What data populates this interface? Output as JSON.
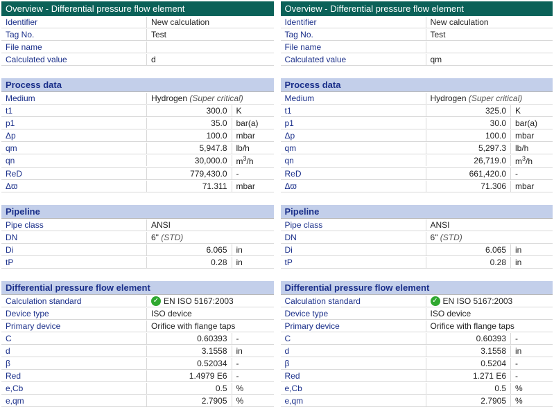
{
  "overview_title": "Overview - Differential pressure flow element",
  "sections": {
    "process_data": "Process data",
    "pipeline": "Pipeline",
    "dp_element": "Differential pressure flow element"
  },
  "labels": {
    "identifier": "Identifier",
    "tag_no": "Tag No.",
    "file_name": "File name",
    "calculated_value": "Calculated value",
    "medium": "Medium",
    "t1": "t1",
    "p1": "p1",
    "dp": "Δp",
    "qm": "qm",
    "qn": "qn",
    "reD": "ReD",
    "dw": "Δϖ",
    "pipe_class": "Pipe class",
    "dn": "DN",
    "di": "Di",
    "tp": "tP",
    "calc_std": "Calculation standard",
    "device_type": "Device type",
    "primary_device": "Primary device",
    "c": "C",
    "d": "d",
    "beta": "β",
    "red": "Red",
    "ecb": "e,Cb",
    "eqm": "e,qm"
  },
  "left": {
    "identifier": "New calculation",
    "tag_no": "Test",
    "file_name": "",
    "calculated_value": "d",
    "medium_main": "Hydrogen",
    "medium_note": "(Super critical)",
    "t1": "300.0",
    "t1_unit": "K",
    "p1": "35.0",
    "p1_unit": "bar(a)",
    "dp": "100.0",
    "dp_unit": "mbar",
    "qm": "5,947.8",
    "qm_unit": "lb/h",
    "qn": "30,000.0",
    "qn_unit": "m³/h",
    "reD": "779,430.0",
    "reD_unit": "-",
    "dw": "71.311",
    "dw_unit": "mbar",
    "pipe_class": "ANSI",
    "dn_main": "6\"",
    "dn_note": "(STD)",
    "di": "6.065",
    "di_unit": "in",
    "tp": "0.28",
    "tp_unit": "in",
    "calc_std": "EN ISO 5167:2003",
    "device_type": "ISO device",
    "primary_device": "Orifice with flange taps",
    "c": "0.60393",
    "c_unit": "-",
    "d_val": "3.1558",
    "d_unit": "in",
    "beta": "0.52034",
    "beta_unit": "-",
    "red": "1.4979 E6",
    "red_unit": "-",
    "ecb": "0.5",
    "ecb_unit": "%",
    "eqm": "2.7905",
    "eqm_unit": "%"
  },
  "right": {
    "identifier": "New calculation",
    "tag_no": "Test",
    "file_name": "",
    "calculated_value": "qm",
    "medium_main": "Hydrogen",
    "medium_note": "(Super critical)",
    "t1": "325.0",
    "t1_unit": "K",
    "p1": "30.0",
    "p1_unit": "bar(a)",
    "dp": "100.0",
    "dp_unit": "mbar",
    "qm": "5,297.3",
    "qm_unit": "lb/h",
    "qn": "26,719.0",
    "qn_unit": "m³/h",
    "reD": "661,420.0",
    "reD_unit": "-",
    "dw": "71.306",
    "dw_unit": "mbar",
    "pipe_class": "ANSI",
    "dn_main": "6\"",
    "dn_note": "(STD)",
    "di": "6.065",
    "di_unit": "in",
    "tp": "0.28",
    "tp_unit": "in",
    "calc_std": "EN ISO 5167:2003",
    "device_type": "ISO device",
    "primary_device": "Orifice with flange taps",
    "c": "0.60393",
    "c_unit": "-",
    "d_val": "3.1558",
    "d_unit": "in",
    "beta": "0.5204",
    "beta_unit": "-",
    "red": "1.271 E6",
    "red_unit": "-",
    "ecb": "0.5",
    "ecb_unit": "%",
    "eqm": "2.7905",
    "eqm_unit": "%"
  }
}
